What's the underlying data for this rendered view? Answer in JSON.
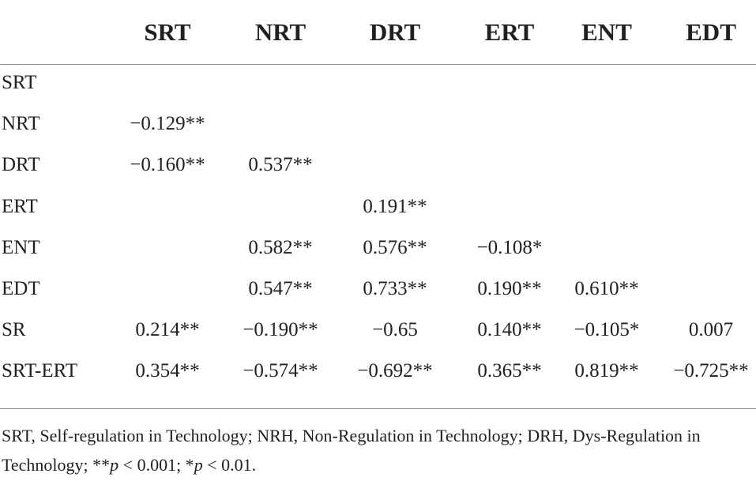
{
  "table": {
    "columns": [
      "SRT",
      "NRT",
      "DRT",
      "ERT",
      "ENT",
      "EDT"
    ],
    "rows": [
      {
        "label": "SRT",
        "cells": [
          null,
          null,
          null,
          null,
          null,
          null
        ]
      },
      {
        "label": "NRT",
        "cells": [
          "−0.129**",
          null,
          null,
          null,
          null,
          null
        ]
      },
      {
        "label": "DRT",
        "cells": [
          "−0.160**",
          "0.537**",
          null,
          null,
          null,
          null
        ]
      },
      {
        "label": "ERT",
        "cells": [
          null,
          null,
          "0.191**",
          null,
          null,
          null
        ]
      },
      {
        "label": "ENT",
        "cells": [
          null,
          "0.582**",
          "0.576**",
          "−0.108*",
          null,
          null
        ]
      },
      {
        "label": "EDT",
        "cells": [
          null,
          "0.547**",
          "0.733**",
          "0.190**",
          "0.610**",
          null
        ]
      },
      {
        "label": "SR",
        "cells": [
          "0.214**",
          "−0.190**",
          "−0.65",
          "0.140**",
          "−0.105*",
          "0.007"
        ]
      },
      {
        "label": "SRT-ERT",
        "cells": [
          "0.354**",
          "−0.574**",
          "−0.692**",
          "0.365**",
          "0.819**",
          "−0.725**"
        ]
      }
    ]
  },
  "footnote": [
    "SRT, Self-regulation in Technology; NRH, Non-Regulation in Technology; DRH, Dys-Regulation in Technology; **",
    "p",
    " < 0.001; *",
    "p",
    " < 0.01."
  ]
}
